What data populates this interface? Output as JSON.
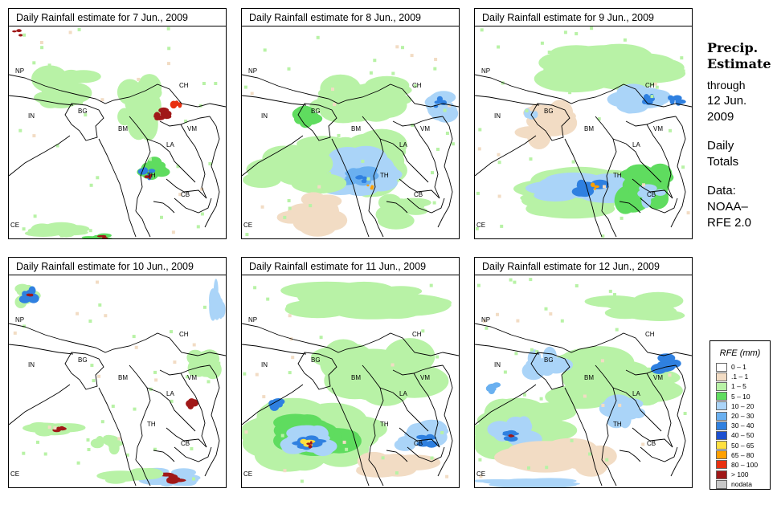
{
  "panels": [
    {
      "title": "Daily Rainfall estimate for  7 Jun., 2009",
      "pattern": "sparse-convective"
    },
    {
      "title": "Daily Rainfall estimate for  8 Jun., 2009",
      "pattern": "widespread-central"
    },
    {
      "title": "Daily Rainfall estimate for  9 Jun., 2009",
      "pattern": "andaman-band"
    },
    {
      "title": "Daily Rainfall estimate for  10 Jun., 2009",
      "pattern": "sparse-south"
    },
    {
      "title": "Daily Rainfall estimate for  11 Jun., 2009",
      "pattern": "bay-cluster"
    },
    {
      "title": "Daily Rainfall estimate for  12 Jun., 2009",
      "pattern": "scattered"
    }
  ],
  "country_labels": [
    "NP",
    "CH",
    "BG",
    "IN",
    "BM",
    "VM",
    "LA",
    "TH",
    "CB",
    "CE"
  ],
  "sidebar": {
    "heading_line1": "Precip.",
    "heading_line2": "Estimate",
    "through": "through",
    "date_line1": "12 Jun.",
    "date_line2": "2009",
    "totals_line1": "Daily",
    "totals_line2": "Totals",
    "source_line1": "Data:",
    "source_line2": "NOAA–",
    "source_line3": "RFE 2.0"
  },
  "legend": {
    "title": "RFE (mm)",
    "items": [
      {
        "label": "0 – 1",
        "color": "#ffffff"
      },
      {
        "label": ".1 – 1",
        "color": "#f2dcc4"
      },
      {
        "label": "1 – 5",
        "color": "#b8f2a6"
      },
      {
        "label": "5 – 10",
        "color": "#5fdc5f"
      },
      {
        "label": "10 – 20",
        "color": "#aad4f8"
      },
      {
        "label": "20 – 30",
        "color": "#6ab0f0"
      },
      {
        "label": "30 – 40",
        "color": "#2f80e0"
      },
      {
        "label": "40 – 50",
        "color": "#1c4fd0"
      },
      {
        "label": "50 – 65",
        "color": "#ffe040"
      },
      {
        "label": "65 – 80",
        "color": "#ffa000"
      },
      {
        "label": "80 – 100",
        "color": "#e83010"
      },
      {
        "label": "> 100",
        "color": "#a01818"
      },
      {
        "label": "nodata",
        "color": "#c8c8c8"
      }
    ]
  }
}
